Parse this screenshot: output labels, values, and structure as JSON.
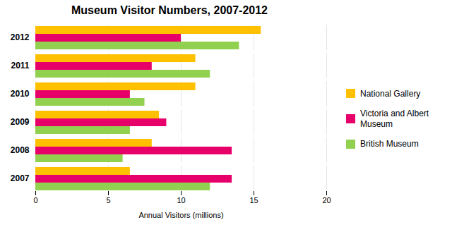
{
  "chart_data": {
    "type": "bar",
    "orientation": "horizontal",
    "title": "Museum Visitor Numbers, 2007-2012",
    "xlabel": "Annual Visitors (millions)",
    "categories": [
      "2007",
      "2008",
      "2009",
      "2010",
      "2011",
      "2012"
    ],
    "series": [
      {
        "name": "National Gallery",
        "color": "#FFC000",
        "values": [
          6.5,
          8.0,
          8.5,
          11.0,
          11.0,
          15.5
        ]
      },
      {
        "name": "Victoria and Albert\nMuseum",
        "color": "#E8006A",
        "values": [
          13.5,
          13.5,
          9.0,
          6.5,
          8.0,
          10.0
        ]
      },
      {
        "name": "British Museum",
        "color": "#92D050",
        "values": [
          12.0,
          6.0,
          6.5,
          7.5,
          12.0,
          14.0
        ]
      }
    ],
    "xlim": [
      0,
      20
    ],
    "xticks": [
      0,
      5,
      10,
      15,
      20
    ],
    "grid": true,
    "legend": "right"
  }
}
